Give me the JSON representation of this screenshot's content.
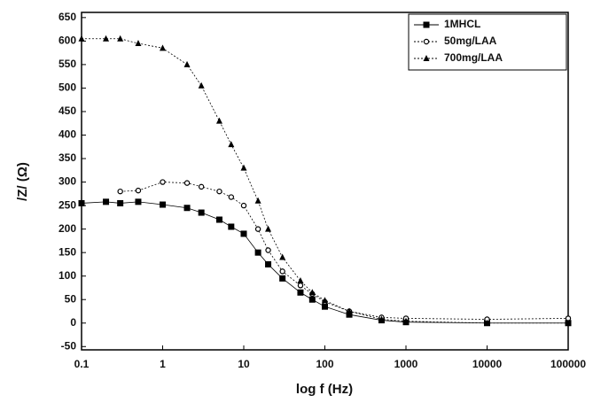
{
  "chart_data": {
    "type": "line",
    "xscale": "log",
    "xlabel": "log f (Hz)",
    "ylabel": "/Z/ (Ω)",
    "x": [
      0.1,
      0.2,
      0.3,
      0.5,
      1,
      2,
      3,
      5,
      7,
      10,
      15,
      20,
      30,
      50,
      70,
      100,
      200,
      500,
      1000,
      10000,
      100000
    ],
    "series": [
      {
        "name": "1MHCL",
        "color": "#000000",
        "marker": "square",
        "values": [
          255,
          258,
          255,
          258,
          252,
          245,
          235,
          220,
          205,
          190,
          150,
          125,
          95,
          65,
          50,
          35,
          18,
          6,
          2,
          0,
          0
        ]
      },
      {
        "name": "50mg/LAA",
        "color": "#000000",
        "marker": "circle",
        "values": [
          null,
          null,
          280,
          282,
          300,
          298,
          290,
          280,
          268,
          250,
          200,
          155,
          110,
          80,
          62,
          45,
          25,
          12,
          10,
          8,
          10
        ]
      },
      {
        "name": "700mg/LAA",
        "color": "#000000",
        "marker": "triangle",
        "values": [
          605,
          605,
          605,
          595,
          585,
          550,
          505,
          430,
          380,
          330,
          260,
          200,
          140,
          90,
          65,
          48,
          25,
          8,
          4,
          0,
          0
        ]
      }
    ],
    "xlim": [
      0.1,
      100000
    ],
    "xticks": [
      0.1,
      1,
      10,
      100,
      1000,
      10000,
      100000
    ],
    "ylim": [
      -57,
      661
    ],
    "yticks": [
      -50,
      0,
      50,
      100,
      150,
      200,
      250,
      300,
      350,
      400,
      450,
      500,
      550,
      600,
      650
    ],
    "legend": "top-right"
  }
}
